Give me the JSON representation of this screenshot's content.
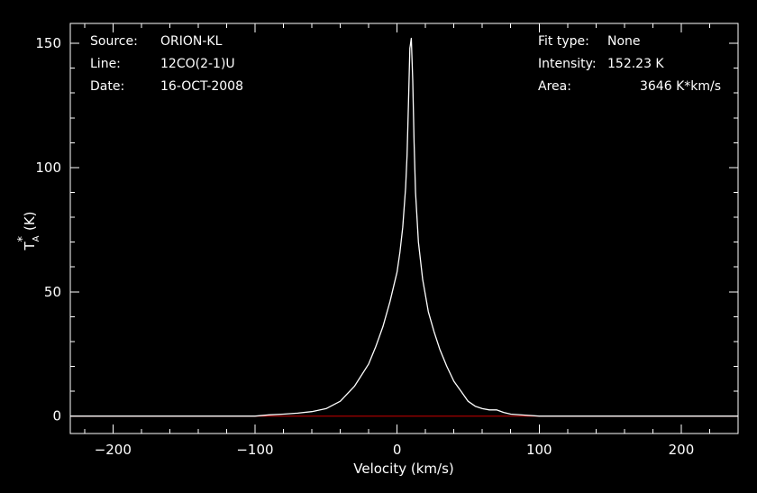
{
  "header_left": {
    "source_label": "Source:",
    "source_value": "ORION-KL",
    "line_label": "Line:",
    "line_value": "12CO(2-1)U",
    "date_label": "Date:",
    "date_value": "16-OCT-2008"
  },
  "header_right": {
    "fit_label": "Fit type:",
    "fit_value": "None",
    "intensity_label": "Intensity:",
    "intensity_value": "152.23 K",
    "area_label": "Area:",
    "area_value": "3646 K*km/s"
  },
  "colors": {
    "background": "#000000",
    "axes": "#ffffff",
    "spectrum": "#ffffff",
    "baseline": "#cc0000"
  },
  "chart_data": {
    "type": "line",
    "xlabel": "Velocity (km/s)",
    "ylabel_main": "T",
    "ylabel_sub": "A",
    "ylabel_sup": "*",
    "ylabel_unit": "(K)",
    "xlim": [
      -230,
      240
    ],
    "ylim": [
      -7,
      158
    ],
    "x_ticks": [
      -200,
      -100,
      0,
      100,
      200
    ],
    "x_tick_labels": [
      "−200",
      "−100",
      "0",
      "100",
      "200"
    ],
    "y_ticks": [
      0,
      50,
      100,
      150
    ],
    "y_tick_labels": [
      "0",
      "50",
      "100",
      "150"
    ],
    "baseline_y": 0,
    "series": [
      {
        "x": [
          -230,
          -200,
          -150,
          -100,
          -90,
          -80,
          -70,
          -60,
          -50,
          -40,
          -30,
          -20,
          -15,
          -10,
          -5,
          0,
          2,
          4,
          6,
          7,
          8,
          9,
          10,
          11,
          12,
          13,
          15,
          18,
          22,
          26,
          30,
          35,
          40,
          45,
          50,
          55,
          60,
          65,
          70,
          75,
          80,
          90,
          100,
          150,
          200,
          240
        ],
        "y": [
          0,
          0,
          0,
          0,
          0.5,
          0.8,
          1.2,
          1.8,
          3,
          6,
          12,
          21,
          28,
          36,
          46,
          58,
          66,
          76,
          92,
          105,
          125,
          148,
          152,
          135,
          110,
          90,
          70,
          55,
          42,
          34,
          27,
          20,
          14,
          10,
          6,
          4,
          3,
          2.5,
          2.5,
          1.5,
          0.8,
          0.4,
          0,
          0,
          0,
          0
        ]
      }
    ]
  }
}
